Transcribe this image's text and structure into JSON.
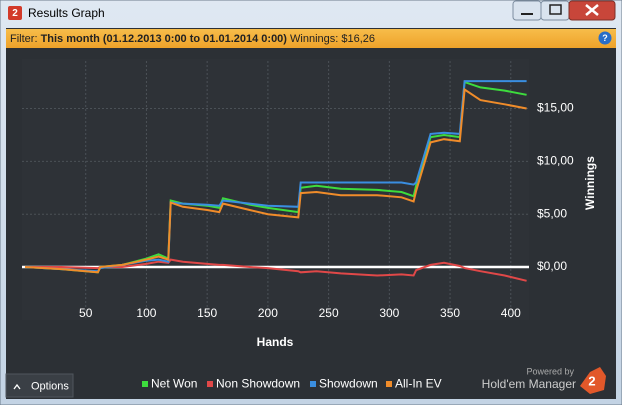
{
  "window": {
    "icon": "2",
    "title": "Results Graph"
  },
  "filter": {
    "label": "Filter:",
    "period": "This month (01.12.2013 0:00 to 01.01.2014 0:00)",
    "winnings": "Winnings: $16,26",
    "help": "?"
  },
  "footer": {
    "options": "Options",
    "powered_by": "Powered by",
    "brand": "Hold'em Manager",
    "logo": "2"
  },
  "chart_data": {
    "type": "line",
    "x_label": "Hands",
    "y_label": "Winnings",
    "x": [
      0,
      30,
      60,
      62,
      80,
      100,
      110,
      118,
      120,
      130,
      150,
      160,
      163,
      185,
      200,
      225,
      227,
      240,
      260,
      290,
      310,
      320,
      322,
      334,
      345,
      358,
      362,
      375,
      395,
      413
    ],
    "series": [
      {
        "name": "Net Won",
        "color": "#3ddc3d",
        "values": [
          0,
          -0.2,
          -0.5,
          0,
          0.2,
          0.8,
          1.2,
          0.8,
          6.3,
          6.0,
          5.8,
          5.6,
          6.5,
          5.9,
          5.6,
          5.2,
          7.5,
          7.7,
          7.4,
          7.3,
          7.1,
          6.7,
          7.7,
          12.3,
          12.5,
          12.3,
          17.5,
          17.0,
          16.7,
          16.3
        ]
      },
      {
        "name": "Non Showdown",
        "color": "#e04848",
        "values": [
          0,
          0,
          -0.1,
          0,
          0,
          0.3,
          0.5,
          0.4,
          0.7,
          0.5,
          0.3,
          0.2,
          0.2,
          0,
          -0.1,
          -0.4,
          -0.5,
          -0.4,
          -0.6,
          -0.8,
          -0.7,
          -0.8,
          -0.3,
          0.2,
          0.4,
          0.1,
          -0.1,
          -0.4,
          -0.8,
          -1.3
        ]
      },
      {
        "name": "Showdown",
        "color": "#3a8ee0",
        "values": [
          0,
          -0.2,
          -0.4,
          -0.1,
          0.2,
          0.6,
          0.7,
          0.5,
          6.1,
          6.0,
          5.9,
          5.8,
          6.3,
          6.0,
          5.8,
          5.7,
          8.0,
          8.0,
          8.0,
          8.0,
          8.0,
          7.8,
          8.0,
          12.6,
          12.7,
          12.6,
          17.6,
          17.6,
          17.6,
          17.6
        ]
      },
      {
        "name": "All-In EV",
        "color": "#f08c2a",
        "values": [
          0,
          -0.2,
          -0.5,
          0,
          0.2,
          0.7,
          1.0,
          0.7,
          6.1,
          5.7,
          5.4,
          5.2,
          6.0,
          5.4,
          5.0,
          4.7,
          7.0,
          7.1,
          6.8,
          6.8,
          6.6,
          6.2,
          7.2,
          11.8,
          12.1,
          11.9,
          16.8,
          15.8,
          15.4,
          15.0
        ]
      }
    ],
    "xlim": [
      0,
      415
    ],
    "xticks": [
      50,
      100,
      150,
      200,
      250,
      300,
      350,
      400
    ],
    "ylim": [
      -3.5,
      19.5
    ],
    "yticks": [
      {
        "value": 0,
        "label": "$0,00"
      },
      {
        "value": 5,
        "label": "$5,00"
      },
      {
        "value": 10,
        "label": "$10,00"
      },
      {
        "value": 15,
        "label": "$15,00"
      }
    ],
    "grid": true
  }
}
